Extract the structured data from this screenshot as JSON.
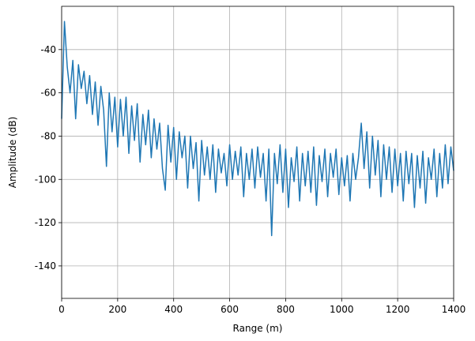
{
  "chart_data": {
    "type": "line",
    "xlabel": "Range (m)",
    "ylabel": "Amplitude (dB)",
    "color": "#1f77b4",
    "grid": true,
    "xlim": [
      0,
      1400
    ],
    "xticks": [
      0,
      200,
      400,
      600,
      800,
      1000,
      1200,
      1400
    ],
    "ylim": [
      -155,
      -20
    ],
    "yticks": [
      -140,
      -120,
      -100,
      -80,
      -60,
      -40
    ],
    "x": [
      0,
      10,
      20,
      30,
      40,
      50,
      60,
      70,
      80,
      90,
      100,
      110,
      120,
      130,
      140,
      150,
      160,
      170,
      180,
      190,
      200,
      210,
      220,
      230,
      240,
      250,
      260,
      270,
      280,
      290,
      300,
      310,
      320,
      330,
      340,
      350,
      360,
      370,
      380,
      390,
      400,
      410,
      420,
      430,
      440,
      450,
      460,
      470,
      480,
      490,
      500,
      510,
      520,
      530,
      540,
      550,
      560,
      570,
      580,
      590,
      600,
      610,
      620,
      630,
      640,
      650,
      660,
      670,
      680,
      690,
      700,
      710,
      720,
      730,
      740,
      750,
      760,
      770,
      780,
      790,
      800,
      810,
      820,
      830,
      840,
      850,
      860,
      870,
      880,
      890,
      900,
      910,
      920,
      930,
      940,
      950,
      960,
      970,
      980,
      990,
      1000,
      1010,
      1020,
      1030,
      1040,
      1050,
      1060,
      1070,
      1080,
      1090,
      1100,
      1110,
      1120,
      1130,
      1140,
      1150,
      1160,
      1170,
      1180,
      1190,
      1200,
      1210,
      1220,
      1230,
      1240,
      1250,
      1260,
      1270,
      1280,
      1290,
      1300,
      1310,
      1320,
      1330,
      1340,
      1350,
      1360,
      1370,
      1380,
      1390,
      1400
    ],
    "values": [
      -72,
      -27,
      -48,
      -60,
      -45,
      -72,
      -47,
      -58,
      -50,
      -65,
      -52,
      -70,
      -55,
      -75,
      -57,
      -68,
      -94,
      -60,
      -78,
      -62,
      -85,
      -63,
      -80,
      -62,
      -88,
      -66,
      -82,
      -65,
      -92,
      -70,
      -84,
      -68,
      -90,
      -72,
      -86,
      -74,
      -95,
      -105,
      -75,
      -92,
      -76,
      -100,
      -78,
      -90,
      -80,
      -104,
      -80,
      -95,
      -83,
      -110,
      -82,
      -98,
      -85,
      -100,
      -84,
      -106,
      -86,
      -97,
      -88,
      -103,
      -84,
      -100,
      -87,
      -98,
      -85,
      -108,
      -88,
      -100,
      -86,
      -104,
      -85,
      -99,
      -88,
      -110,
      -86,
      -126,
      -88,
      -102,
      -84,
      -106,
      -86,
      -113,
      -90,
      -101,
      -85,
      -110,
      -88,
      -103,
      -87,
      -106,
      -85,
      -112,
      -89,
      -101,
      -86,
      -108,
      -88,
      -99,
      -86,
      -107,
      -90,
      -103,
      -89,
      -110,
      -88,
      -100,
      -90,
      -74,
      -95,
      -78,
      -104,
      -80,
      -98,
      -82,
      -108,
      -84,
      -100,
      -85,
      -106,
      -86,
      -103,
      -88,
      -110,
      -87,
      -102,
      -88,
      -113,
      -89,
      -104,
      -87,
      -111,
      -90,
      -100,
      -86,
      -108,
      -88,
      -104,
      -84,
      -102,
      -85,
      -96
    ]
  }
}
